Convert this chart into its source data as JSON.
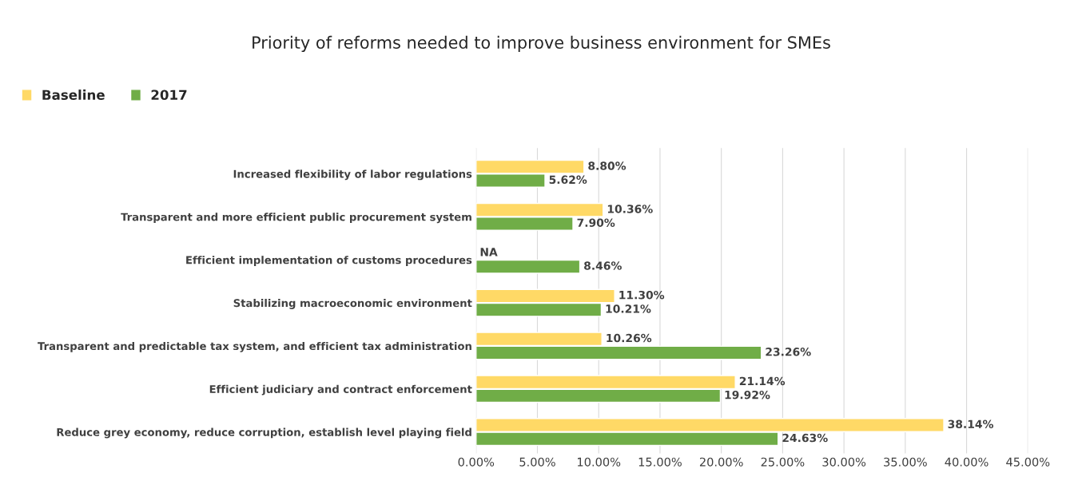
{
  "chart_data": {
    "type": "bar",
    "orientation": "horizontal",
    "title": "Priority of reforms needed to improve business environment for SMEs",
    "categories": [
      "Increased flexibility of labor regulations",
      "Transparent and more efficient public procurement system",
      "Efficient implementation of customs procedures",
      "Stabilizing macroeconomic environment",
      "Transparent and predictable tax system, and efficient tax administration",
      "Efficient judiciary and contract enforcement",
      "Reduce grey economy, reduce corruption, establish level playing field"
    ],
    "series": [
      {
        "name": "Baseline",
        "color": "#ffd966",
        "values": [
          8.8,
          10.36,
          null,
          11.3,
          10.26,
          21.14,
          38.14
        ],
        "value_labels": [
          "8.80%",
          "10.36%",
          "NA",
          "11.30%",
          "10.26%",
          "21.14%",
          "38.14%"
        ]
      },
      {
        "name": "2017",
        "color": "#70ad47",
        "values": [
          5.62,
          7.9,
          8.46,
          10.21,
          23.26,
          19.92,
          24.63
        ],
        "value_labels": [
          "5.62%",
          "7.90%",
          "8.46%",
          "10.21%",
          "23.26%",
          "19.92%",
          "24.63%"
        ]
      }
    ],
    "xlim": [
      0,
      45
    ],
    "xticks": [
      {
        "value": 0,
        "label": "0.00%"
      },
      {
        "value": 5,
        "label": "5.00%"
      },
      {
        "value": 10,
        "label": "10.00%"
      },
      {
        "value": 15,
        "label": "15.00%"
      },
      {
        "value": 20,
        "label": "20.00%"
      },
      {
        "value": 25,
        "label": "25.00%"
      },
      {
        "value": 30,
        "label": "30.00%"
      },
      {
        "value": 35,
        "label": "35.00%"
      },
      {
        "value": 40,
        "label": "40.00%"
      },
      {
        "value": 45,
        "label": "45.00%"
      }
    ],
    "grid": "x",
    "legend": "top left"
  }
}
